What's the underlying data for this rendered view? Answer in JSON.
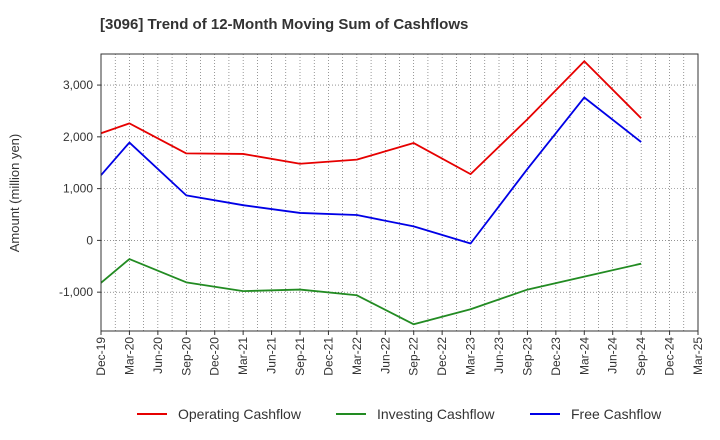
{
  "chart_data": {
    "type": "line",
    "title": "[3096]  Trend of 12-Month Moving Sum of Cashflows",
    "xlabel": "",
    "ylabel": "Amount (million yen)",
    "ylim": [
      -1750,
      3600
    ],
    "yticks": [
      -1000,
      0,
      1000,
      2000,
      3000
    ],
    "ytick_labels": [
      "-1,000",
      "0",
      "1,000",
      "2,000",
      "3,000"
    ],
    "categories": [
      "Dec-19",
      "Mar-20",
      "Jun-20",
      "Sep-20",
      "Dec-20",
      "Mar-21",
      "Jun-21",
      "Sep-21",
      "Dec-21",
      "Mar-22",
      "Jun-22",
      "Sep-22",
      "Dec-22",
      "Mar-23",
      "Jun-23",
      "Sep-23",
      "Dec-23",
      "Mar-24",
      "Jun-24",
      "Sep-24",
      "Dec-24",
      "Mar-25"
    ],
    "grid": true,
    "legend_position": "bottom",
    "series": [
      {
        "name": "Operating Cashflow",
        "color": "#e60000",
        "values": [
          2070,
          2260,
          null,
          1680,
          null,
          1670,
          null,
          1480,
          null,
          1560,
          null,
          1880,
          null,
          1280,
          null,
          2340,
          null,
          3460,
          null,
          2360,
          null,
          null
        ]
      },
      {
        "name": "Investing Cashflow",
        "color": "#228b22",
        "values": [
          -820,
          -360,
          null,
          -810,
          null,
          -980,
          null,
          -950,
          null,
          -1060,
          null,
          -1620,
          null,
          -1330,
          null,
          -950,
          null,
          -700,
          null,
          -450,
          null,
          null
        ]
      },
      {
        "name": "Free Cashflow",
        "color": "#0000e6",
        "values": [
          1260,
          1890,
          null,
          870,
          null,
          680,
          null,
          530,
          null,
          490,
          null,
          270,
          null,
          -60,
          null,
          1380,
          null,
          2760,
          null,
          1900,
          null,
          null
        ]
      }
    ]
  }
}
